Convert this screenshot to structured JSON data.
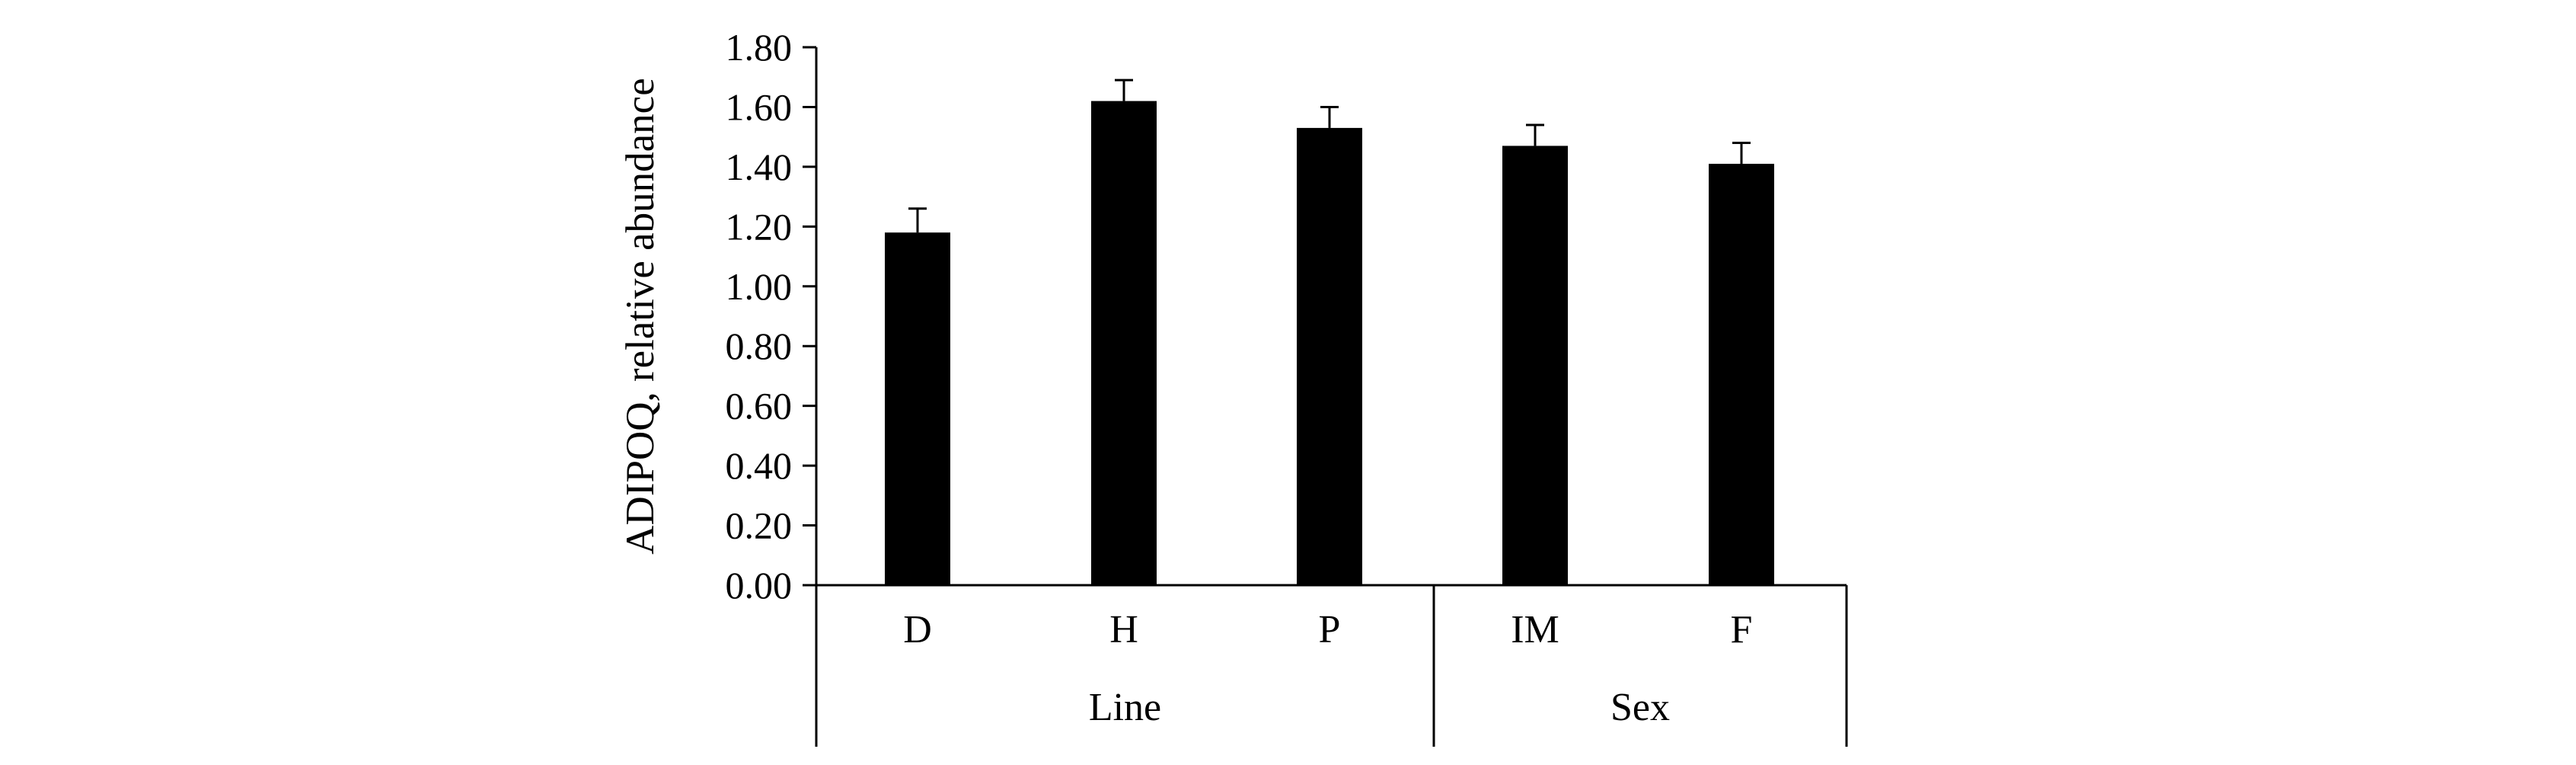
{
  "chart_data": {
    "type": "bar",
    "title": "",
    "xlabel": "",
    "ylabel": "ADIPOQ, relative abundance",
    "ylim": [
      0,
      1.8
    ],
    "yticks": [
      "0.00",
      "0.20",
      "0.40",
      "0.60",
      "0.80",
      "1.00",
      "1.20",
      "1.40",
      "1.60",
      "1.80"
    ],
    "categories": [
      "D",
      "H",
      "P",
      "IM",
      "F"
    ],
    "values": [
      1.18,
      1.62,
      1.53,
      1.47,
      1.41
    ],
    "errors": [
      0.08,
      0.07,
      0.07,
      0.07,
      0.07
    ],
    "groups": [
      {
        "label": "Line",
        "categories": [
          "D",
          "H",
          "P"
        ]
      },
      {
        "label": "Sex",
        "categories": [
          "IM",
          "F"
        ]
      }
    ],
    "bar_color": "#000000",
    "grid": false,
    "legend": "none"
  }
}
